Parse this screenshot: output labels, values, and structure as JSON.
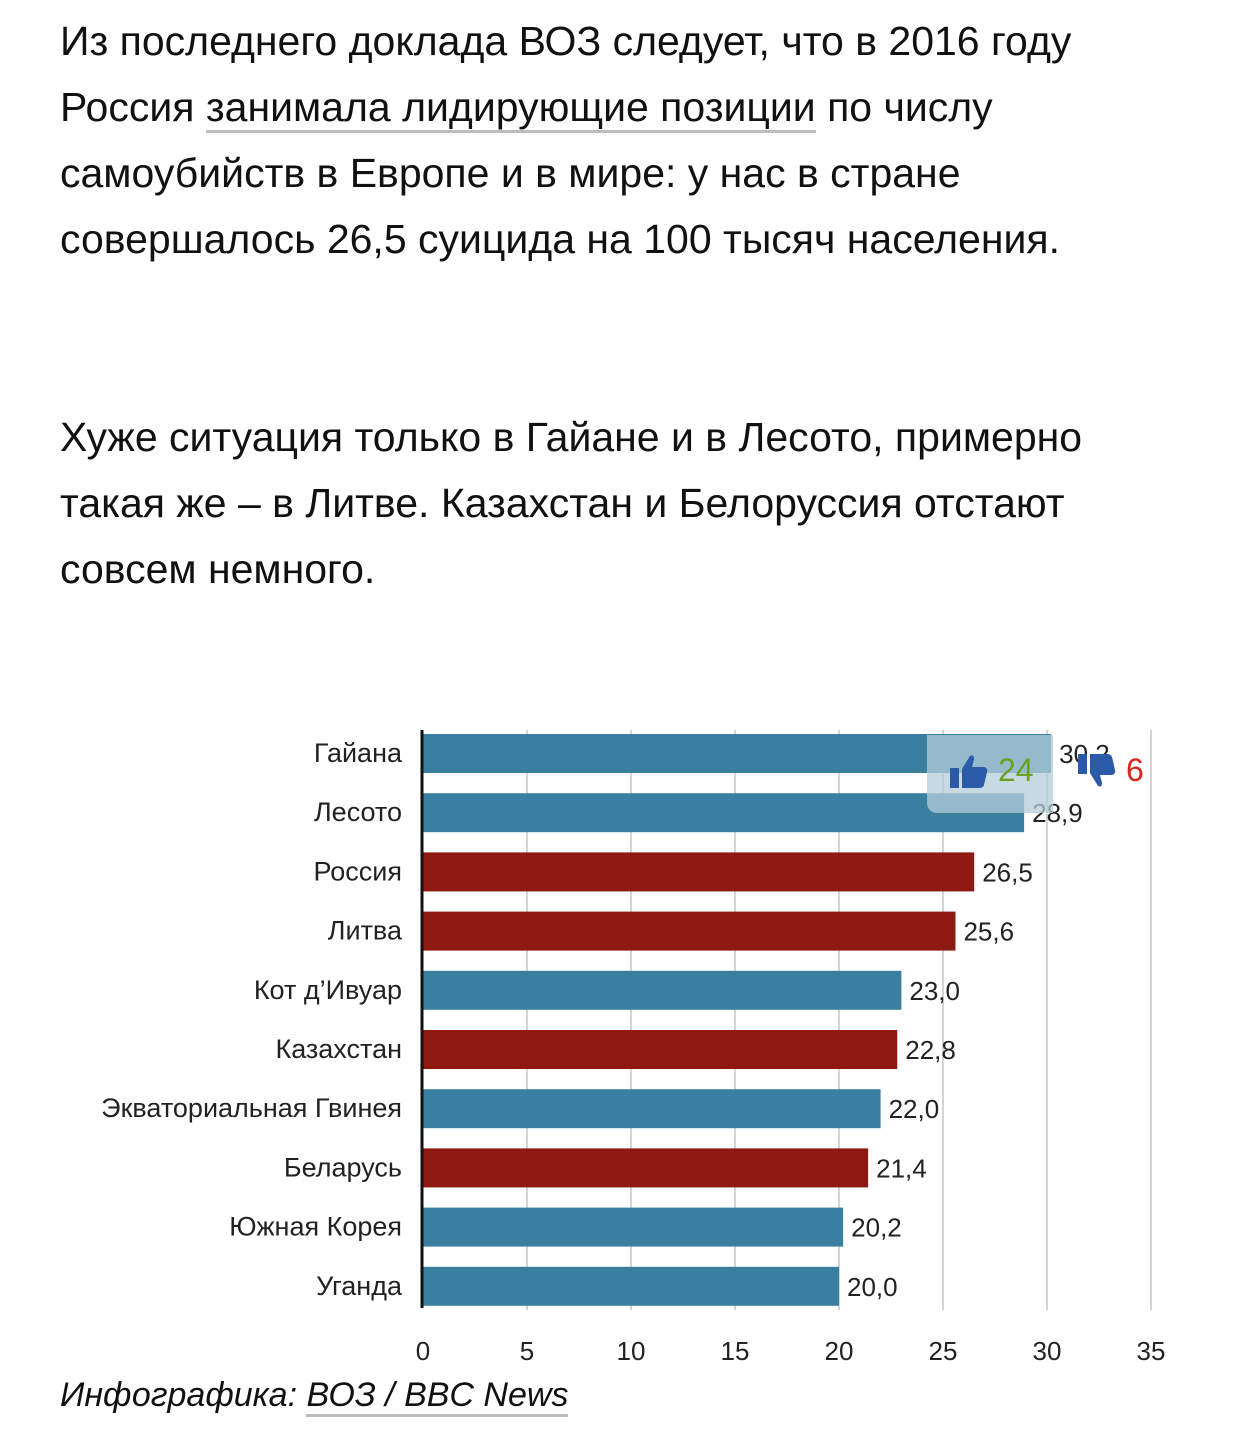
{
  "article": {
    "p1_a": "Из последнего доклада ВОЗ следует, что в 2016 году Россия ",
    "p1_link": "занимала лидирующие позиции",
    "p1_b": " по числу самоубийств в Европе и в мире: у нас в стране совершалось 26,5 суицида на 100 тысяч населения.",
    "p2": "Хуже ситуация только в Гайане и в Лесото, примерно такая же – в Литве. Казахстан и Белоруссия отстают совсем немного."
  },
  "chart_data": {
    "type": "bar",
    "orientation": "horizontal",
    "categories": [
      "Гайана",
      "Лесото",
      "Россия",
      "Литва",
      "Кот д’Ивуар",
      "Казахстан",
      "Экваториальная Гвинея",
      "Беларусь",
      "Южная Корея",
      "Уганда"
    ],
    "values": [
      30.2,
      28.9,
      26.5,
      25.6,
      23.0,
      22.8,
      22.0,
      21.4,
      20.2,
      20.0
    ],
    "value_labels": [
      "30,2",
      "28,9",
      "26,5",
      "25,6",
      "23,0",
      "22,8",
      "22,0",
      "21,4",
      "20,2",
      "20,0"
    ],
    "highlighted": [
      false,
      false,
      true,
      true,
      false,
      true,
      false,
      true,
      false,
      false
    ],
    "colors": {
      "default": "#3b7fa0",
      "highlight": "#8e1812"
    },
    "xlim": [
      0,
      35
    ],
    "xticks": [
      "0",
      "5",
      "10",
      "15",
      "20",
      "25",
      "30",
      "35"
    ],
    "grid": true
  },
  "caption": {
    "prefix": "Инфографика: ",
    "source": "ВОЗ / BBC News"
  },
  "votes": {
    "up_count": "24",
    "down_count": "6",
    "up_icon": "thumbs-up-icon",
    "down_icon": "thumbs-down-icon"
  }
}
